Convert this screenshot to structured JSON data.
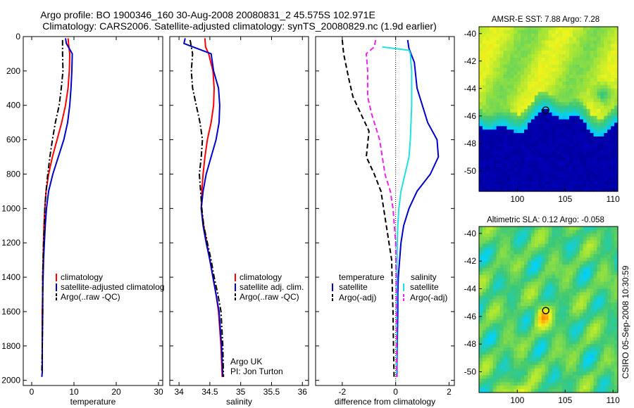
{
  "header": {
    "title_line1": "Argo profile: BO 1900346_160 30-Aug-2008 20080831_2 45.575S 102.971E",
    "title_line2": "Climatology: CARS2006. Satellite-adjusted climatology: synTS_20080829.nc (1.9d earlier)"
  },
  "colors": {
    "red": "#ff0000",
    "blue": "#0000cc",
    "black": "#000000",
    "cyan": "#22e0e0",
    "magenta": "#ee22ee"
  },
  "chart_data": [
    {
      "type": "line",
      "xlabel": "temperature",
      "ylabel": "",
      "xlim": [
        -2,
        31
      ],
      "ylim": [
        2030,
        0
      ],
      "y_reversed": true,
      "x_ticks": [
        "0",
        "10",
        "20",
        "30"
      ],
      "y_ticks": [
        "0",
        "200",
        "400",
        "600",
        "800",
        "1000",
        "1200",
        "1400",
        "1600",
        "1800",
        "2000"
      ],
      "legend": [
        "climatology",
        "satellite-adjusted climatolog",
        "Argo(..raw -QC)"
      ],
      "series": [
        {
          "name": "climatology",
          "style": "solid",
          "color_key": "red",
          "x": [
            8.6,
            8.8,
            9.0,
            8.9,
            8.6,
            8.0,
            7.1,
            6.0,
            4.9,
            4.0,
            3.4,
            3.1,
            2.9,
            2.8,
            2.7,
            2.6,
            2.6,
            2.5,
            2.5,
            2.5
          ],
          "y": [
            10,
            60,
            100,
            200,
            300,
            400,
            500,
            600,
            700,
            800,
            900,
            1000,
            1100,
            1200,
            1300,
            1400,
            1500,
            1600,
            1800,
            1960
          ]
        },
        {
          "name": "satellite-adjusted climatolog",
          "style": "solid",
          "color_key": "blue",
          "x": [
            8.0,
            8.2,
            9.6,
            9.5,
            9.3,
            9.0,
            8.5,
            7.6,
            6.3,
            5.0,
            4.0,
            3.5,
            3.2,
            3.0,
            2.8,
            2.7,
            2.6,
            2.6,
            2.5,
            2.5,
            2.4
          ],
          "y": [
            10,
            40,
            100,
            200,
            300,
            400,
            500,
            600,
            700,
            800,
            900,
            1000,
            1100,
            1200,
            1300,
            1400,
            1500,
            1600,
            1800,
            1950,
            1980
          ]
        },
        {
          "name": "Argo(..raw -QC)",
          "style": "dashdot",
          "color_key": "black",
          "x": [
            7.3,
            7.3,
            7.3,
            7.4,
            7.0,
            6.5,
            5.6,
            4.9,
            4.3,
            3.8,
            3.4,
            3.1,
            3.0,
            2.8,
            2.7,
            2.6,
            2.6,
            2.5,
            2.4
          ],
          "y": [
            20,
            50,
            100,
            200,
            300,
            400,
            500,
            600,
            700,
            800,
            900,
            1000,
            1100,
            1200,
            1300,
            1400,
            1600,
            1800,
            1950
          ]
        }
      ]
    },
    {
      "type": "line",
      "xlabel": "salinity",
      "ylabel": "",
      "xlim": [
        33.85,
        36.1
      ],
      "ylim": [
        2030,
        0
      ],
      "y_reversed": true,
      "x_ticks": [
        "34",
        "34.5",
        "35",
        "35.5",
        "36"
      ],
      "legend": [
        "climatology",
        "satellite adj. clim.",
        "Argo(..raw -QC)"
      ],
      "annotations": [
        "Argo UK",
        "PI: Jon Turton"
      ],
      "series": [
        {
          "name": "climatology",
          "style": "solid",
          "color_key": "red",
          "x": [
            34.42,
            34.43,
            34.48,
            34.55,
            34.57,
            34.56,
            34.52,
            34.46,
            34.42,
            34.39,
            34.37,
            34.36,
            34.4,
            34.45,
            34.5,
            34.55,
            34.6,
            34.64,
            34.68,
            34.7
          ],
          "y": [
            10,
            60,
            100,
            200,
            300,
            400,
            500,
            600,
            700,
            800,
            900,
            1000,
            1100,
            1200,
            1300,
            1400,
            1500,
            1600,
            1800,
            1980
          ]
        },
        {
          "name": "satellite adj. clim.",
          "style": "solid",
          "color_key": "blue",
          "x": [
            34.1,
            34.08,
            34.52,
            34.56,
            34.64,
            34.66,
            34.65,
            34.6,
            34.52,
            34.44,
            34.39,
            34.36,
            34.39,
            34.44,
            34.5,
            34.55,
            34.6,
            34.65,
            34.69,
            34.71
          ],
          "y": [
            10,
            40,
            100,
            200,
            300,
            400,
            500,
            600,
            700,
            800,
            900,
            1000,
            1100,
            1200,
            1300,
            1400,
            1500,
            1600,
            1800,
            1980
          ]
        },
        {
          "name": "Argo(..raw -QC)",
          "style": "dashdot",
          "color_key": "black",
          "x": [
            34.18,
            34.2,
            34.22,
            34.2,
            34.22,
            34.28,
            34.34,
            34.38,
            34.36,
            34.33,
            34.35,
            34.37,
            34.4,
            34.46,
            34.52,
            34.57,
            34.63,
            34.68,
            34.71,
            34.72
          ],
          "y": [
            20,
            60,
            100,
            200,
            300,
            400,
            500,
            600,
            700,
            800,
            900,
            1000,
            1100,
            1200,
            1300,
            1400,
            1500,
            1600,
            1800,
            1980
          ]
        }
      ]
    },
    {
      "type": "line",
      "xlabel": "difference from climatology",
      "ylabel": "",
      "xlim": [
        -3.0,
        2.2
      ],
      "ylim": [
        2030,
        0
      ],
      "y_reversed": true,
      "x_ticks": [
        "-2",
        "0",
        "2"
      ],
      "legend_headers": [
        "temperature",
        "salinity"
      ],
      "legend": [
        "satellite",
        "Argo(-adj)",
        "satellite",
        "Argo(-adj)"
      ],
      "series": [
        {
          "name": "satellite",
          "legend_group": "temperature",
          "style": "solid",
          "color_key": "blue",
          "x": [
            0.45,
            0.5,
            0.7,
            0.8,
            1.2,
            1.55,
            1.6,
            1.3,
            0.8,
            0.5,
            0.3,
            0.2,
            0.15,
            0.1,
            0.08,
            0.08,
            0.06,
            0.05,
            0.05
          ],
          "y": [
            20,
            70,
            150,
            300,
            500,
            600,
            700,
            800,
            900,
            1000,
            1100,
            1200,
            1300,
            1400,
            1500,
            1600,
            1800,
            1900,
            1980
          ]
        },
        {
          "name": "Argo(-adj)",
          "legend_group": "temperature",
          "style": "dashed",
          "color_key": "black",
          "x": [
            -2.0,
            -1.95,
            -1.75,
            -1.6,
            -1.3,
            -1.0,
            -1.1,
            -0.8,
            -0.55,
            -0.45,
            -0.35,
            -0.25,
            -0.15,
            -0.12,
            -0.1,
            -0.08,
            -0.06
          ],
          "y": [
            20,
            100,
            250,
            350,
            450,
            550,
            700,
            800,
            900,
            1000,
            1100,
            1200,
            1300,
            1500,
            1600,
            1800,
            1980
          ]
        },
        {
          "name": "satellite",
          "legend_group": "salinity",
          "style": "solid",
          "color_key": "cyan",
          "x": [
            -0.5,
            0.5,
            0.55,
            0.6,
            0.6,
            0.55,
            0.5,
            0.35,
            0.2,
            0.12,
            0.08,
            0.06,
            0.05,
            0.04,
            0.04,
            0.03
          ],
          "y": [
            60,
            80,
            100,
            200,
            400,
            600,
            700,
            800,
            900,
            1000,
            1100,
            1200,
            1400,
            1600,
            1800,
            1980
          ]
        },
        {
          "name": "Argo(-adj)",
          "legend_group": "salinity",
          "style": "dashed",
          "color_key": "magenta",
          "x": [
            -0.75,
            -0.8,
            -1.1,
            -1.05,
            -1.05,
            -0.9,
            -0.6,
            -0.4,
            -0.2,
            -0.1,
            -0.05,
            0.0,
            0.02,
            0.03,
            0.04
          ],
          "y": [
            20,
            60,
            100,
            200,
            350,
            450,
            600,
            800,
            900,
            1000,
            1100,
            1200,
            1400,
            1600,
            1980
          ]
        }
      ]
    },
    {
      "type": "heatmap",
      "title": "AMSR-E SST: 7.88 Argo: 7.28",
      "xlim": [
        96,
        110.5
      ],
      "ylim": [
        -51.5,
        -39.5
      ],
      "x_ticks": [
        "100",
        "105",
        "110"
      ],
      "y_ticks": [
        "-40",
        "-42",
        "-44",
        "-46",
        "-48",
        "-50"
      ],
      "marker": {
        "lon": 102.971,
        "lat": -45.575
      }
    },
    {
      "type": "heatmap",
      "title": "Altimetric SLA: 0.12 Argo: -0.058",
      "xlim": [
        96,
        110.5
      ],
      "ylim": [
        -51.5,
        -39.5
      ],
      "x_ticks": [
        "100",
        "105",
        "110"
      ],
      "y_ticks": [
        "-40",
        "-42",
        "-44",
        "-46",
        "-48",
        "-50"
      ],
      "marker": {
        "lon": 102.971,
        "lat": -45.575
      }
    }
  ],
  "footer": {
    "credit": "CSIRO 05-Sep-2008 10:30:59"
  }
}
